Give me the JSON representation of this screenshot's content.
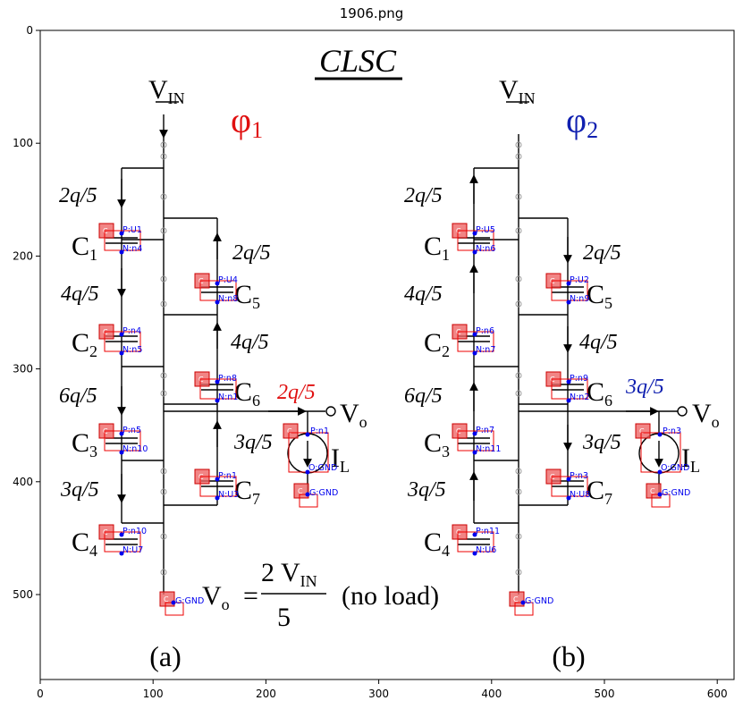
{
  "window_title": "1906.png",
  "x_ticks": [
    "0",
    "100",
    "200",
    "300",
    "400",
    "500",
    "600"
  ],
  "y_ticks": [
    "0",
    "100",
    "200",
    "300",
    "400",
    "500"
  ],
  "circuit": {
    "title": "CLSC",
    "vin": "V",
    "vin_sub": "IN",
    "vo": "V",
    "vo_sub": "o",
    "il": "I",
    "il_sub": "L",
    "caption_a": "(a)",
    "caption_b": "(b)",
    "phase_a": {
      "symbol": "φ",
      "sub": "1",
      "color": "#e01010"
    },
    "phase_b": {
      "symbol": "φ",
      "sub": "2",
      "color": "#1020b0"
    },
    "charges_a": [
      "2q/5",
      "4q/5",
      "6q/5",
      "3q/5",
      "2q/5",
      "4q/5",
      "3q/5",
      "2q/5"
    ],
    "charges_b": [
      "2q/5",
      "4q/5",
      "6q/5",
      "3q/5",
      "2q/5",
      "4q/5",
      "3q/5",
      "3q/5"
    ],
    "cap_letter": "C",
    "cap_subs_a": [
      "1",
      "2",
      "3",
      "4",
      "5",
      "6",
      "7"
    ],
    "cap_subs_b": [
      "1",
      "2",
      "3",
      "4",
      "5",
      "6",
      "7"
    ],
    "formula": {
      "lhs": "V",
      "lhs_sub": "o",
      "eq": "=",
      "num": "2 V",
      "num_sub": "IN",
      "den": "5",
      "note": "(no load)"
    }
  },
  "annotations": {
    "box_label": "C",
    "a": [
      {
        "p": "P:U1",
        "n": "N:n4"
      },
      {
        "p": "P:n4",
        "n": "N:n5"
      },
      {
        "p": "P:n5",
        "n": "N:n10"
      },
      {
        "p": "P:n10",
        "n": "N:U7"
      },
      {
        "p": "P:U4",
        "n": "N:n8"
      },
      {
        "p": "P:n8",
        "n": "N:n1"
      },
      {
        "p": "P:n1",
        "n": "N:U3"
      }
    ],
    "b": [
      {
        "p": "P:U5",
        "n": "N:n6"
      },
      {
        "p": "P:n6",
        "n": "N:n7"
      },
      {
        "p": "P:n7",
        "n": "N:n11"
      },
      {
        "p": "P:n11",
        "n": "N:U6"
      },
      {
        "p": "P:U2",
        "n": "N:n9"
      },
      {
        "p": "P:n9",
        "n": "N:n2"
      },
      {
        "p": "P:n3",
        "n": "N:U8"
      }
    ],
    "source_a": {
      "p": "P:n1",
      "n": "O:GND"
    },
    "source_b": {
      "p": "P:n3",
      "n": "O:GND"
    },
    "gnd": "G:GND"
  }
}
